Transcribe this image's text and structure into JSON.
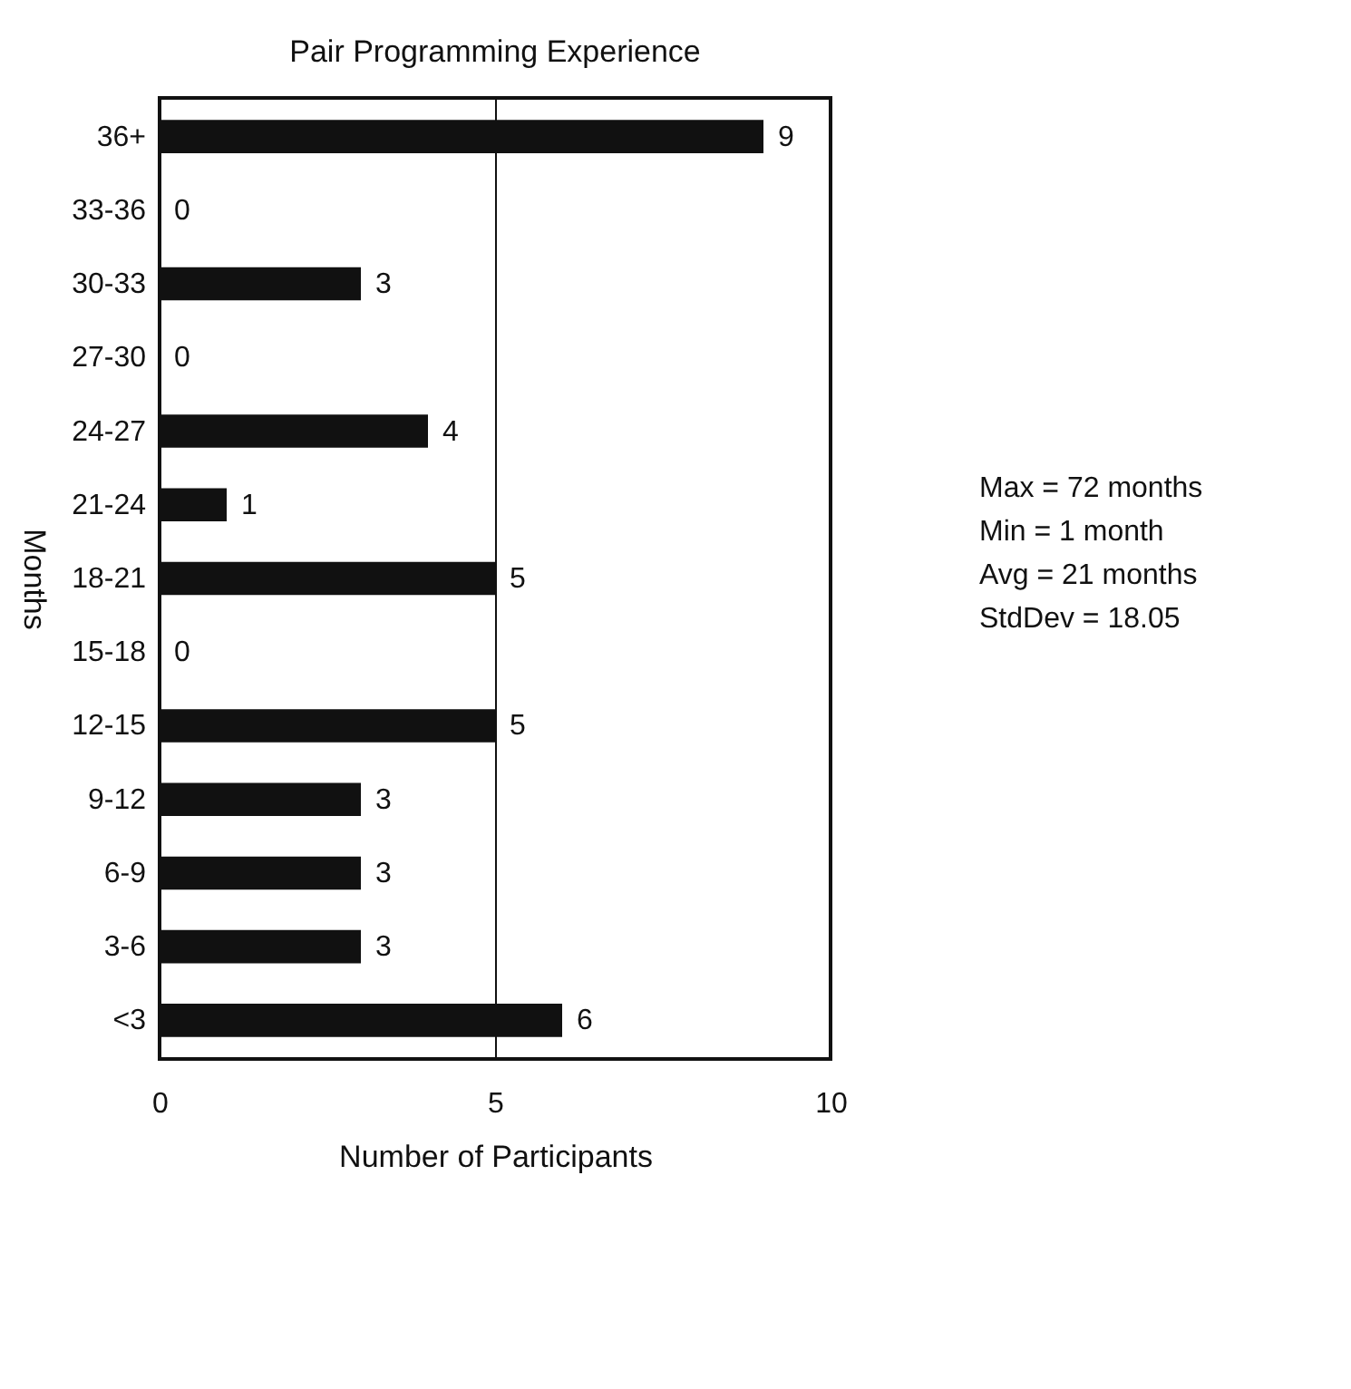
{
  "chart_data": {
    "type": "bar",
    "orientation": "horizontal",
    "title": "Pair Programming Experience",
    "xlabel": "Number of Participants",
    "ylabel": "Months",
    "categories": [
      "36+",
      "33-36",
      "30-33",
      "27-30",
      "24-27",
      "21-24",
      "18-21",
      "15-18",
      "12-15",
      "9-12",
      "6-9",
      "3-6",
      "<3"
    ],
    "series": [
      {
        "color": "#111111",
        "values": [
          9,
          0,
          3,
          0,
          4,
          1,
          5,
          0,
          5,
          3,
          3,
          3,
          6
        ]
      }
    ],
    "xlim": [
      0,
      10
    ],
    "xticks": [
      0,
      5,
      10
    ],
    "grid": "x",
    "data_labels": true,
    "annotations": [
      "Max = 72 months",
      "Min = 1 month",
      "Avg = 21 months",
      "StdDev = 18.05"
    ]
  }
}
